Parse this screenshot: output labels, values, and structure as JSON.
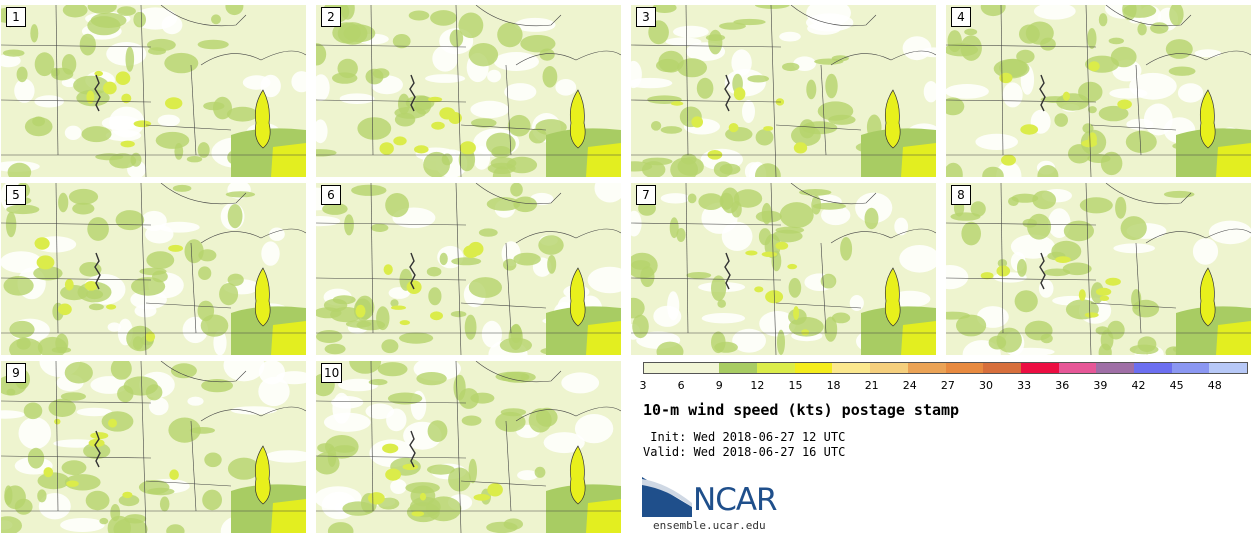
{
  "panels": [
    {
      "label": "1"
    },
    {
      "label": "2"
    },
    {
      "label": "3"
    },
    {
      "label": "4"
    },
    {
      "label": "5"
    },
    {
      "label": "6"
    },
    {
      "label": "7"
    },
    {
      "label": "8"
    },
    {
      "label": "9"
    },
    {
      "label": "10"
    }
  ],
  "colorbar": {
    "ticks": [
      "3",
      "6",
      "9",
      "12",
      "15",
      "18",
      "21",
      "24",
      "27",
      "30",
      "33",
      "36",
      "39",
      "42",
      "45",
      "48"
    ],
    "colors": [
      "#f1f5d6",
      "#f1f5d6",
      "#a8cc63",
      "#dbec4a",
      "#f4ec1c",
      "#fbe88e",
      "#f5cf7d",
      "#eba356",
      "#e88a40",
      "#d76f3c",
      "#ec0e42",
      "#e65797",
      "#9f6fa6",
      "#6c6ff0",
      "#8b97f2",
      "#b7c8f7"
    ]
  },
  "legend": {
    "title": "10-m wind speed (kts) postage stamp",
    "init": " Init: Wed 2018-06-27 12 UTC",
    "valid": "Valid: Wed 2018-06-27 16 UTC"
  },
  "logo": {
    "text": "NCAR",
    "site": "ensemble.ucar.edu",
    "color": "#1f4f8b"
  }
}
